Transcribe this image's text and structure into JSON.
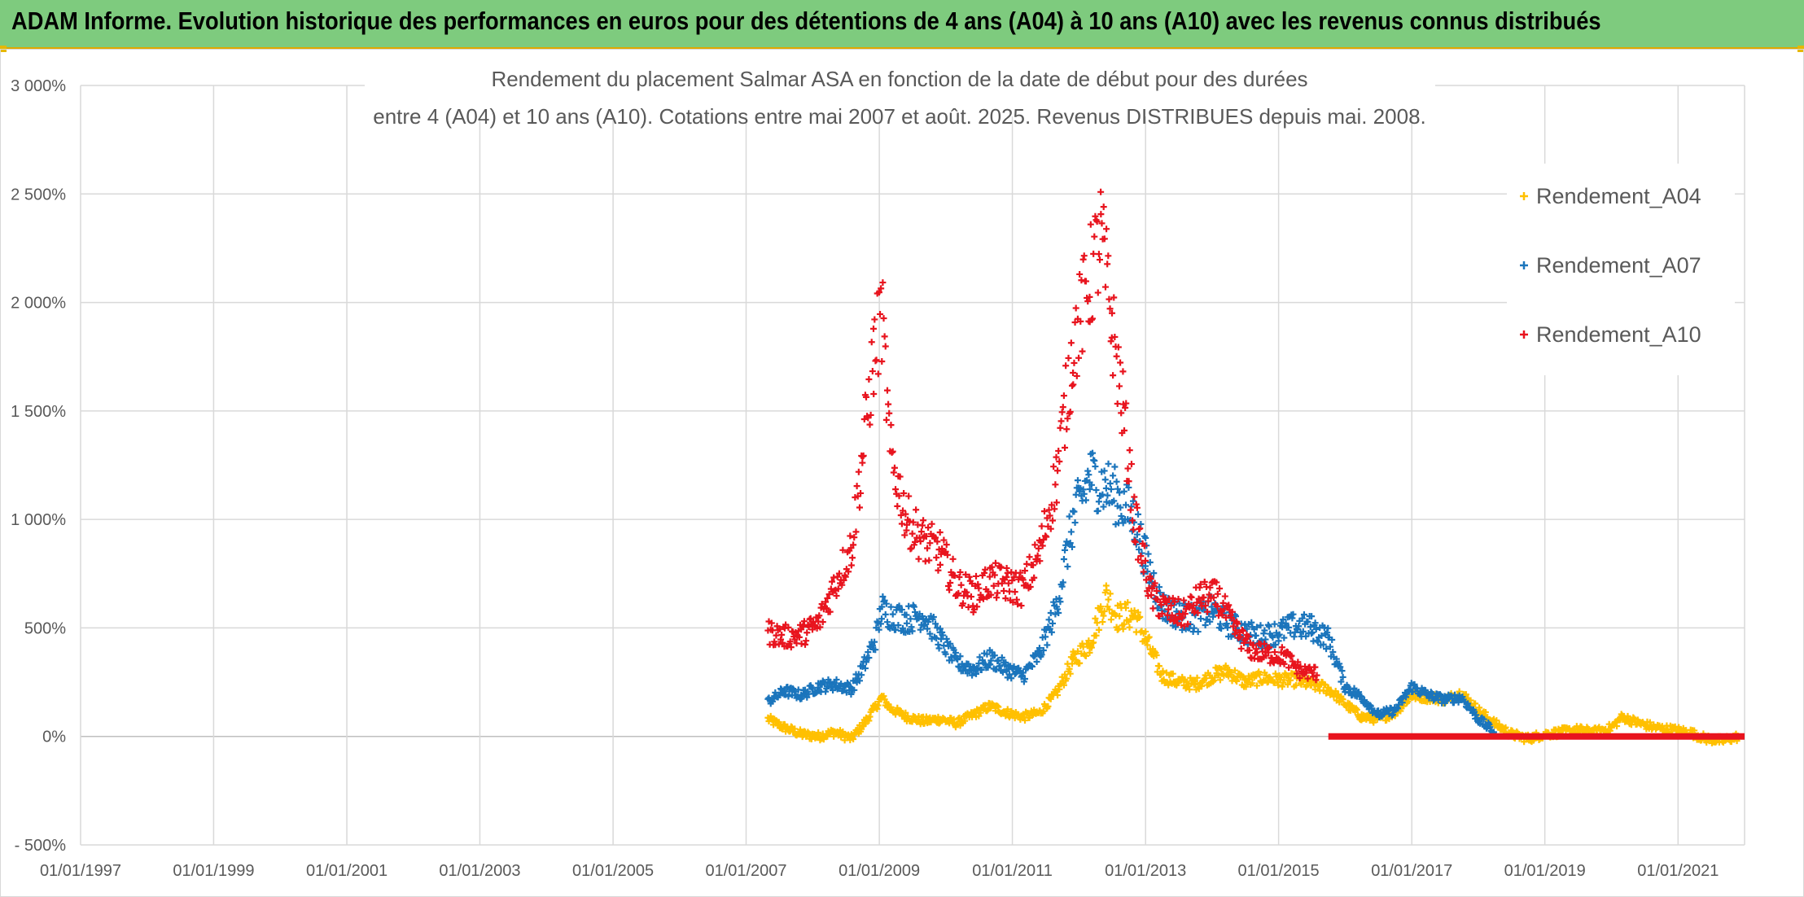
{
  "header": {
    "title": "ADAM Informe. Evolution historique des performances en euros pour des détentions de 4 ans (A04) à 10 ans (A10) avec les revenus connus distribués"
  },
  "chart_data": {
    "type": "scatter",
    "title_line1": "Rendement du placement Salmar ASA en fonction de la date de début pour des durées",
    "title_line2": "entre 4 (A04) et 10 ans (A10). Cotations entre mai 2007 et août. 2025. Revenus DISTRIBUES depuis mai. 2008.",
    "y_ticks": [
      "- 500%",
      "0%",
      "500%",
      "1 000%",
      "1 500%",
      "2 000%",
      "2 500%",
      "3 000%"
    ],
    "x_ticks": [
      "01/01/1997",
      "01/01/1999",
      "01/01/2001",
      "01/01/2003",
      "01/01/2005",
      "01/01/2007",
      "01/01/2009",
      "01/01/2011",
      "01/01/2013",
      "01/01/2015",
      "01/01/2017",
      "01/01/2019",
      "01/01/2021"
    ],
    "ylim": [
      -500,
      3000
    ],
    "xlim": [
      "1997-01-01",
      "2022-01-01"
    ],
    "grid": true,
    "legend_position": "right",
    "series": [
      {
        "name": "Rendement_A04",
        "color": "#FFC000",
        "points": [
          [
            "2007-05-01",
            80
          ],
          [
            "2007-08-01",
            40
          ],
          [
            "2007-11-01",
            10
          ],
          [
            "2008-02-01",
            0
          ],
          [
            "2008-05-01",
            20
          ],
          [
            "2008-08-01",
            -10
          ],
          [
            "2008-10-01",
            50
          ],
          [
            "2008-12-15",
            140
          ],
          [
            "2009-01-15",
            180
          ],
          [
            "2009-03-01",
            130
          ],
          [
            "2009-06-01",
            90
          ],
          [
            "2009-09-01",
            70
          ],
          [
            "2009-12-01",
            80
          ],
          [
            "2010-03-01",
            60
          ],
          [
            "2010-06-01",
            100
          ],
          [
            "2010-09-01",
            140
          ],
          [
            "2010-12-01",
            110
          ],
          [
            "2011-03-01",
            90
          ],
          [
            "2011-06-01",
            110
          ],
          [
            "2011-09-01",
            200
          ],
          [
            "2011-12-01",
            350
          ],
          [
            "2012-03-01",
            430
          ],
          [
            "2012-06-01",
            650
          ],
          [
            "2012-08-01",
            550
          ],
          [
            "2012-11-01",
            560
          ],
          [
            "2013-01-01",
            450
          ],
          [
            "2013-04-01",
            280
          ],
          [
            "2013-07-01",
            250
          ],
          [
            "2013-10-01",
            240
          ],
          [
            "2014-01-01",
            280
          ],
          [
            "2014-04-01",
            300
          ],
          [
            "2014-07-01",
            250
          ],
          [
            "2014-10-01",
            270
          ],
          [
            "2015-01-01",
            260
          ],
          [
            "2015-04-01",
            260
          ],
          [
            "2015-07-01",
            240
          ],
          [
            "2015-10-01",
            220
          ],
          [
            "2016-01-01",
            150
          ],
          [
            "2016-04-01",
            90
          ],
          [
            "2016-07-01",
            80
          ],
          [
            "2016-10-01",
            110
          ],
          [
            "2017-01-01",
            190
          ],
          [
            "2017-04-01",
            180
          ],
          [
            "2017-07-01",
            170
          ],
          [
            "2017-10-01",
            200
          ],
          [
            "2018-01-01",
            120
          ],
          [
            "2018-04-01",
            60
          ],
          [
            "2018-07-01",
            10
          ],
          [
            "2018-10-01",
            -10
          ],
          [
            "2019-01-01",
            10
          ],
          [
            "2019-04-01",
            20
          ],
          [
            "2019-07-01",
            30
          ],
          [
            "2019-10-01",
            20
          ],
          [
            "2020-01-01",
            40
          ],
          [
            "2020-03-01",
            90
          ],
          [
            "2020-06-01",
            60
          ],
          [
            "2020-09-01",
            40
          ],
          [
            "2020-12-01",
            30
          ],
          [
            "2021-03-01",
            20
          ],
          [
            "2021-06-01",
            -10
          ],
          [
            "2021-09-01",
            -20
          ],
          [
            "2021-12-01",
            0
          ]
        ]
      },
      {
        "name": "Rendement_A07",
        "color": "#1B75BC",
        "points": [
          [
            "2007-05-01",
            160
          ],
          [
            "2007-08-01",
            210
          ],
          [
            "2007-11-01",
            190
          ],
          [
            "2008-02-01",
            230
          ],
          [
            "2008-05-01",
            240
          ],
          [
            "2008-08-01",
            220
          ],
          [
            "2008-10-01",
            310
          ],
          [
            "2008-12-15",
            460
          ],
          [
            "2009-01-15",
            590
          ],
          [
            "2009-03-01",
            560
          ],
          [
            "2009-06-01",
            540
          ],
          [
            "2009-09-01",
            560
          ],
          [
            "2009-12-01",
            450
          ],
          [
            "2010-03-01",
            340
          ],
          [
            "2010-06-01",
            310
          ],
          [
            "2010-09-01",
            360
          ],
          [
            "2010-12-01",
            310
          ],
          [
            "2011-03-01",
            280
          ],
          [
            "2011-06-01",
            380
          ],
          [
            "2011-09-01",
            600
          ],
          [
            "2011-12-01",
            1000
          ],
          [
            "2012-03-01",
            1200
          ],
          [
            "2012-06-01",
            1150
          ],
          [
            "2012-08-01",
            1100
          ],
          [
            "2012-11-01",
            1000
          ],
          [
            "2013-01-01",
            820
          ],
          [
            "2013-04-01",
            600
          ],
          [
            "2013-07-01",
            560
          ],
          [
            "2013-10-01",
            540
          ],
          [
            "2014-01-01",
            580
          ],
          [
            "2014-04-01",
            520
          ],
          [
            "2014-07-01",
            480
          ],
          [
            "2014-10-01",
            460
          ],
          [
            "2015-01-01",
            480
          ],
          [
            "2015-04-01",
            510
          ],
          [
            "2015-07-01",
            500
          ],
          [
            "2015-10-01",
            450
          ],
          [
            "2016-01-01",
            230
          ],
          [
            "2016-04-01",
            180
          ],
          [
            "2016-07-01",
            100
          ],
          [
            "2016-10-01",
            120
          ],
          [
            "2017-01-01",
            230
          ],
          [
            "2017-04-01",
            190
          ],
          [
            "2017-07-01",
            170
          ],
          [
            "2017-10-01",
            180
          ],
          [
            "2018-01-01",
            80
          ],
          [
            "2018-04-01",
            20
          ]
        ]
      },
      {
        "name": "Rendement_A10",
        "color": "#E8141E",
        "points": [
          [
            "2007-05-01",
            480
          ],
          [
            "2007-08-01",
            460
          ],
          [
            "2007-11-01",
            470
          ],
          [
            "2008-02-01",
            520
          ],
          [
            "2008-05-01",
            700
          ],
          [
            "2008-08-01",
            870
          ],
          [
            "2008-10-01",
            1300
          ],
          [
            "2008-12-01",
            1750
          ],
          [
            "2009-01-15",
            1950
          ],
          [
            "2009-03-01",
            1300
          ],
          [
            "2009-06-01",
            1000
          ],
          [
            "2009-09-01",
            900
          ],
          [
            "2009-12-01",
            850
          ],
          [
            "2010-03-01",
            700
          ],
          [
            "2010-06-01",
            650
          ],
          [
            "2010-09-01",
            720
          ],
          [
            "2010-12-01",
            700
          ],
          [
            "2011-03-01",
            680
          ],
          [
            "2011-06-01",
            850
          ],
          [
            "2011-09-01",
            1200
          ],
          [
            "2011-12-01",
            1800
          ],
          [
            "2012-03-01",
            2100
          ],
          [
            "2012-05-01",
            2300
          ],
          [
            "2012-07-01",
            1900
          ],
          [
            "2012-09-01",
            1500
          ],
          [
            "2012-11-01",
            1000
          ],
          [
            "2013-02-01",
            650
          ],
          [
            "2013-05-01",
            580
          ],
          [
            "2013-08-01",
            560
          ],
          [
            "2013-11-01",
            640
          ],
          [
            "2014-02-01",
            640
          ],
          [
            "2014-05-01",
            500
          ],
          [
            "2014-08-01",
            400
          ],
          [
            "2014-11-01",
            380
          ],
          [
            "2015-02-01",
            370
          ],
          [
            "2015-05-01",
            300
          ],
          [
            "2015-08-01",
            290
          ]
        ],
        "flat_segment": [
          [
            "2015-10-01",
            0
          ],
          [
            "2022-01-01",
            0
          ]
        ]
      }
    ]
  }
}
